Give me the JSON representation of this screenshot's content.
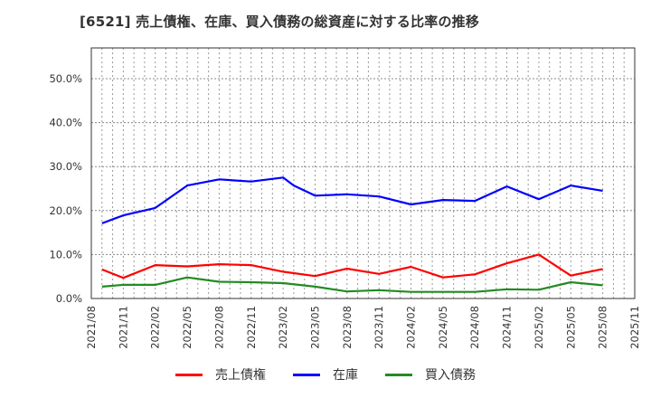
{
  "title": "[6521]  売上債権、在庫、買入債務の総資産に対する比率の推移",
  "chart_data": {
    "type": "line",
    "title": "[6521]  売上債権、在庫、買入債務の総資産に対する比率の推移",
    "xlabel": "",
    "ylabel": "",
    "ylim": [
      0,
      57
    ],
    "grid": true,
    "legend_position": "bottom",
    "y_ticks": [
      "0.0%",
      "10.0%",
      "20.0%",
      "30.0%",
      "40.0%",
      "50.0%"
    ],
    "y_tick_values": [
      0,
      10,
      20,
      30,
      40,
      50
    ],
    "x_ticks": [
      "2021/08",
      "2021/11",
      "2022/02",
      "2022/05",
      "2022/08",
      "2022/11",
      "2023/02",
      "2023/05",
      "2023/08",
      "2023/11",
      "2024/02",
      "2024/05",
      "2024/08",
      "2024/11",
      "2025/02",
      "2025/05",
      "2025/08",
      "2025/11"
    ],
    "x": [
      "2021/09",
      "2021/11",
      "2022/02",
      "2022/05",
      "2022/08",
      "2022/11",
      "2023/02",
      "2023/03",
      "2023/05",
      "2023/08",
      "2023/11",
      "2024/02",
      "2024/05",
      "2024/08",
      "2024/11",
      "2025/02",
      "2025/05",
      "2025/08"
    ],
    "series": [
      {
        "name": "売上債権",
        "color": "#ff0000",
        "values": [
          6.6,
          4.7,
          7.6,
          7.3,
          7.8,
          7.6,
          6.1,
          null,
          5.1,
          6.8,
          5.6,
          7.2,
          4.8,
          5.5,
          8.0,
          10.0,
          5.2,
          6.7
        ]
      },
      {
        "name": "在庫",
        "color": "#0000ff",
        "values": [
          17.1,
          18.9,
          20.6,
          25.7,
          27.1,
          26.6,
          27.5,
          25.7,
          23.4,
          23.7,
          23.2,
          21.4,
          22.4,
          22.2,
          25.5,
          22.6,
          25.7,
          24.5
        ]
      },
      {
        "name": "買入債務",
        "color": "#228b22",
        "values": [
          2.7,
          3.1,
          3.1,
          4.8,
          3.8,
          3.7,
          3.5,
          null,
          2.7,
          1.6,
          1.9,
          1.5,
          1.5,
          1.5,
          2.1,
          2.0,
          3.7,
          3.0
        ]
      }
    ]
  },
  "legend": [
    {
      "label": "売上債権",
      "color": "#ff0000"
    },
    {
      "label": "在庫",
      "color": "#0000ff"
    },
    {
      "label": "買入債務",
      "color": "#228b22"
    }
  ]
}
